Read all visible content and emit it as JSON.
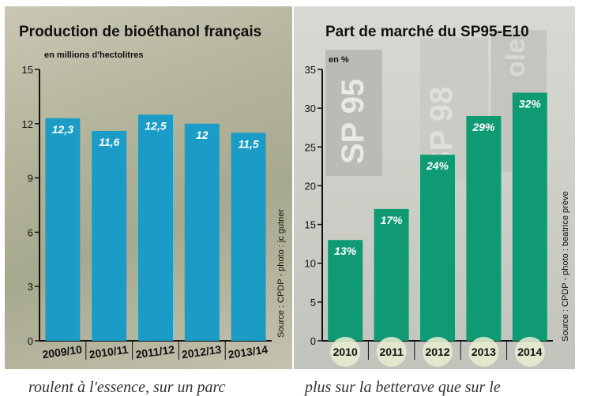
{
  "left_panel": {
    "title": "Production de bioéthanol français",
    "unit": "en millions d'hectolitres",
    "source": "Source : CPDP - photo : jc gutner"
  },
  "right_panel": {
    "title": "Part de marché du SP95-E10",
    "unit": "en %",
    "source": "Source : CPDP - photo : beatrice prève",
    "background_signs": [
      "SP 95",
      "SP 98",
      "ole"
    ]
  },
  "bottom_text": {
    "left": "roulent à l'essence, sur un parc",
    "right": "plus sur la betterave que sur le"
  },
  "colors": {
    "left_bar": "#1a9cc6",
    "right_bar": "#0f9a73",
    "label_text": "#ffffff"
  },
  "chart_data": [
    {
      "type": "bar",
      "title": "Production de bioéthanol français",
      "ylabel": "en millions d'hectolitres",
      "categories": [
        "2009/10",
        "2010/11",
        "2011/12",
        "2012/13",
        "2013/14"
      ],
      "values": [
        12.3,
        11.6,
        12.5,
        12,
        11.5
      ],
      "value_labels": [
        "12,3",
        "11,6",
        "12,5",
        "12",
        "11,5"
      ],
      "yticks": [
        0,
        3,
        6,
        9,
        12,
        15
      ],
      "ylim": [
        0,
        15
      ],
      "grid": false
    },
    {
      "type": "bar",
      "title": "Part de marché du SP95-E10",
      "ylabel": "en %",
      "categories": [
        "2010",
        "2011",
        "2012",
        "2013",
        "2014"
      ],
      "values": [
        13,
        17,
        24,
        29,
        32
      ],
      "value_labels": [
        "13%",
        "17%",
        "24%",
        "29%",
        "32%"
      ],
      "yticks": [
        0,
        5,
        10,
        15,
        20,
        25,
        30,
        35
      ],
      "ylim": [
        0,
        35
      ],
      "grid": false
    }
  ]
}
